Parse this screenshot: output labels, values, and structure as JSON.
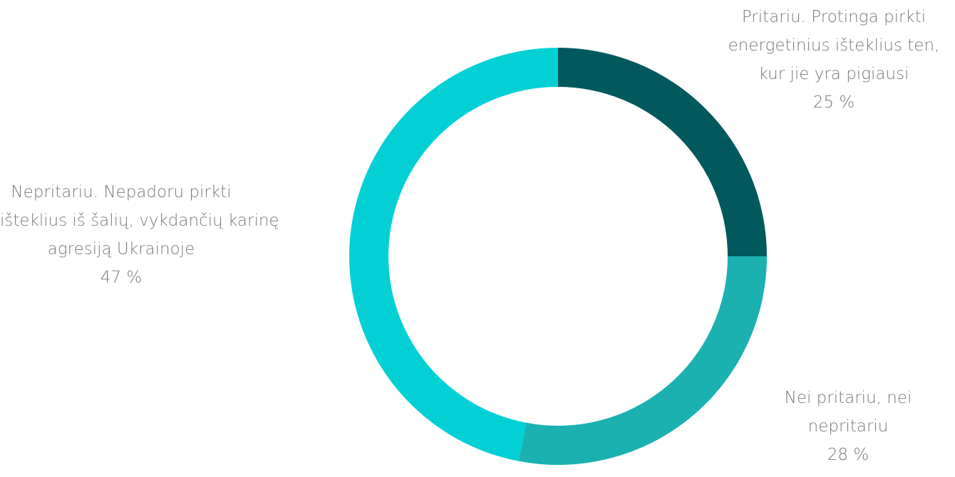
{
  "chart_data": {
    "type": "pie",
    "donut": true,
    "title": "",
    "slices": [
      {
        "label_lines": [
          "Pritariu. Protinga pirkti",
          "energetinius išteklius ten,",
          "kur jie yra pigiausi"
        ],
        "value": 25,
        "value_label": "25 %",
        "color": "#01585d"
      },
      {
        "label_lines": [
          "Nei pritariu, nei",
          "nepritariu"
        ],
        "value": 28,
        "value_label": "28 %",
        "color": "#1bb1b1"
      },
      {
        "label_lines": [
          "Nepritariu. Nepadoru pirkti",
          "išteklius iš šalių, vykdančių karinę",
          "agresiją Ukrainoje"
        ],
        "value": 47,
        "value_label": "47 %",
        "color": "#02d0d4"
      }
    ]
  }
}
